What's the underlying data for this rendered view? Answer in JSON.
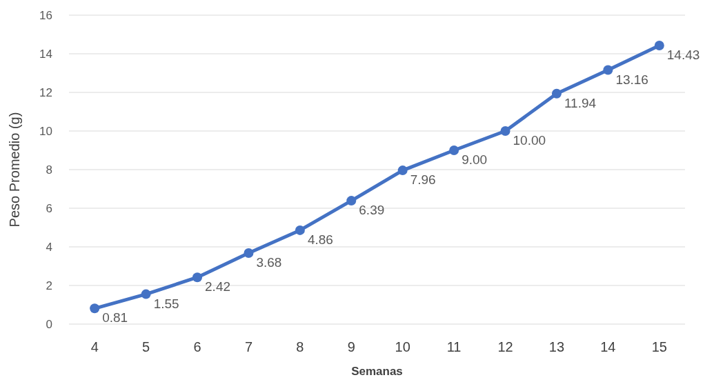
{
  "chart_data": {
    "type": "line",
    "xlabel": "Semanas",
    "ylabel": "Peso Promedio (g)",
    "categories": [
      "4",
      "5",
      "6",
      "7",
      "8",
      "9",
      "10",
      "11",
      "12",
      "13",
      "14",
      "15"
    ],
    "series": [
      {
        "color": "#4472c4",
        "values": [
          0.81,
          1.55,
          2.42,
          3.68,
          4.86,
          6.39,
          7.96,
          9.0,
          10.0,
          11.94,
          13.16,
          14.43
        ]
      }
    ],
    "value_labels": [
      "0.81",
      "1.55",
      "2.42",
      "3.68",
      "4.86",
      "6.39",
      "7.96",
      "9.00",
      "10.00",
      "11.94",
      "13.16",
      "14.43"
    ],
    "ylim": [
      0,
      16
    ],
    "yticks": [
      0,
      2,
      4,
      6,
      8,
      10,
      12,
      14,
      16
    ],
    "grid": "y",
    "marker": "circle",
    "line_style": "solid"
  }
}
